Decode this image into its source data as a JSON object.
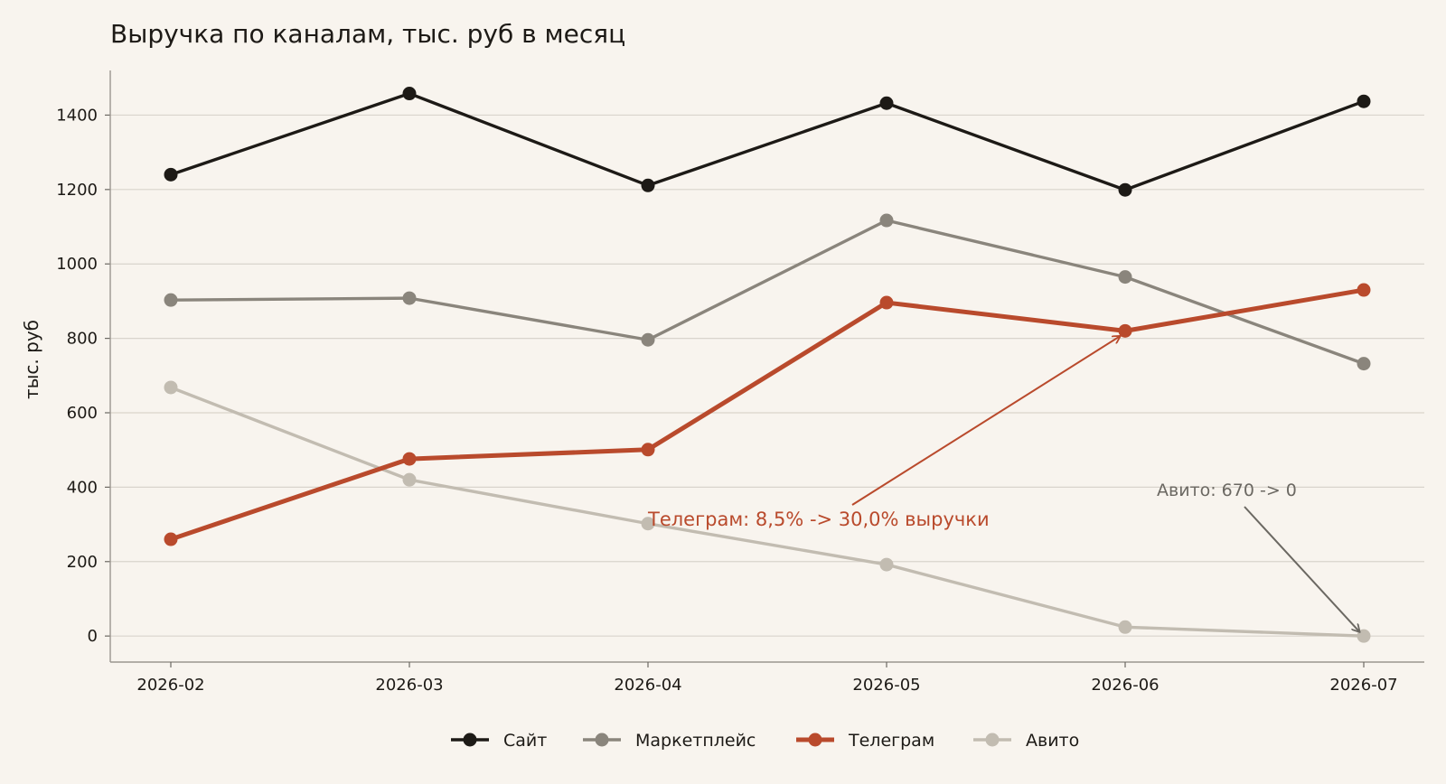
{
  "chart_data": {
    "type": "line",
    "title": "Выручка по каналам, тыс. руб в месяц",
    "xlabel": "",
    "ylabel": "тыс. руб",
    "categories": [
      "2026-02",
      "2026-03",
      "2026-04",
      "2026-05",
      "2026-06",
      "2026-07"
    ],
    "ylim": [
      -70,
      1520
    ],
    "yticks": [
      0,
      200,
      400,
      600,
      800,
      1000,
      1200,
      1400
    ],
    "grid": "horizontal",
    "legend_position": "bottom-center",
    "series": [
      {
        "name": "Сайт",
        "color": "#1d1a16",
        "values": [
          1240,
          1458,
          1211,
          1432,
          1199,
          1437
        ]
      },
      {
        "name": "Маркетплейс",
        "color": "#8a857c",
        "values": [
          903,
          908,
          796,
          1117,
          965,
          732
        ]
      },
      {
        "name": "Телеграм",
        "color": "#b94a2c",
        "values": [
          260,
          476,
          501,
          896,
          820,
          930
        ]
      },
      {
        "name": "Авито",
        "color": "#c2bcb1",
        "values": [
          668,
          420,
          302,
          192,
          24,
          0
        ]
      }
    ],
    "annotations": [
      {
        "text": "Телеграм: 8,5% -> 30,0% выручки",
        "color": "#b94a2c",
        "target_x": "2026-06",
        "target_y": 820
      },
      {
        "text": "Авито: 670 -> 0",
        "color": "#6b6862",
        "target_x": "2026-07",
        "target_y": 0
      }
    ]
  }
}
